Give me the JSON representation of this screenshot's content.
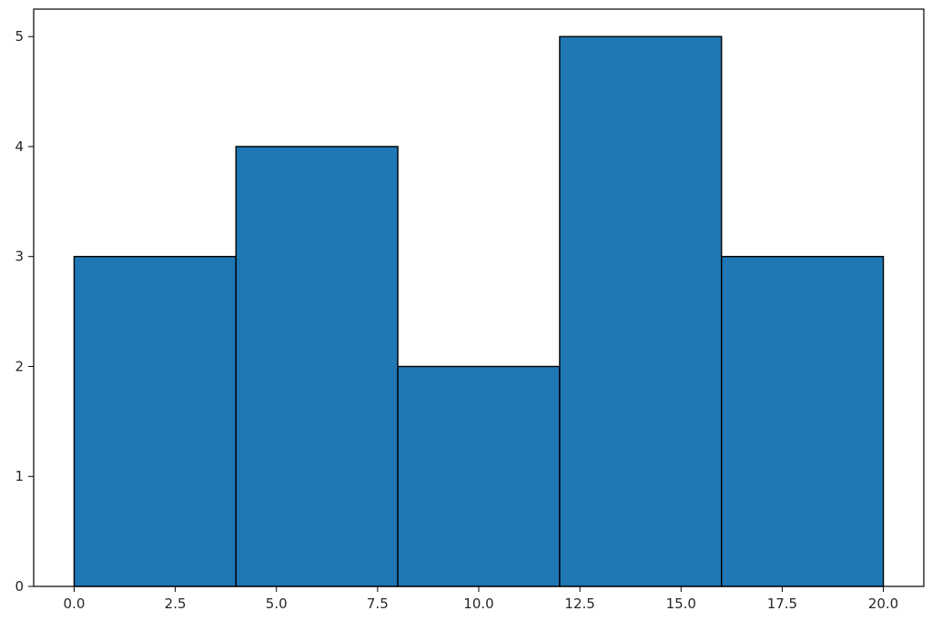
{
  "chart_data": {
    "type": "bar",
    "subtype": "histogram",
    "bins": [
      {
        "x0": 0,
        "x1": 4,
        "count": 3
      },
      {
        "x0": 4,
        "x1": 8,
        "count": 4
      },
      {
        "x0": 8,
        "x1": 12,
        "count": 2
      },
      {
        "x0": 12,
        "x1": 16,
        "count": 5
      },
      {
        "x0": 16,
        "x1": 20,
        "count": 3
      }
    ],
    "xlim": [
      -1,
      21
    ],
    "ylim": [
      0,
      5.25
    ],
    "xticks": [
      "0.0",
      "2.5",
      "5.0",
      "7.5",
      "10.0",
      "12.5",
      "15.0",
      "17.5",
      "20.0"
    ],
    "yticks": [
      "0",
      "1",
      "2",
      "3",
      "4",
      "5"
    ],
    "title": "",
    "xlabel": "",
    "ylabel": "",
    "grid": false,
    "bar_color": "#1f77b4",
    "edge_color": "#000000"
  }
}
